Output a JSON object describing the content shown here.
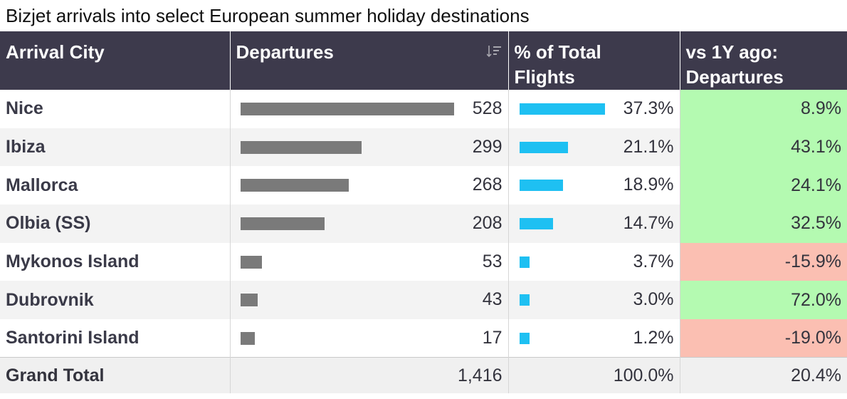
{
  "title": "Bizjet arrivals into select European summer holiday destinations",
  "headers": {
    "city": "Arrival City",
    "departures": "Departures",
    "pct_line1": "% of Total",
    "pct_line2": "Flights",
    "yoy_line1": "vs 1Y ago:",
    "yoy_line2": "Departures"
  },
  "colors": {
    "header_bg": "#3d3a4c",
    "departures_bar": "#7a7a7a",
    "pct_bar": "#1ec0f2",
    "positive_change": "#b4fab1",
    "negative_change": "#fbbfb2"
  },
  "chart_data": {
    "type": "table",
    "columns": [
      "Arrival City",
      "Departures",
      "% of Total Flights",
      "vs 1Y ago: Departures"
    ],
    "rows": [
      {
        "city": "Nice",
        "departures": 528,
        "departures_label": "528",
        "pct": 37.3,
        "pct_label": "37.3%",
        "yoy": 8.9,
        "yoy_label": "8.9%"
      },
      {
        "city": "Ibiza",
        "departures": 299,
        "departures_label": "299",
        "pct": 21.1,
        "pct_label": "21.1%",
        "yoy": 43.1,
        "yoy_label": "43.1%"
      },
      {
        "city": "Mallorca",
        "departures": 268,
        "departures_label": "268",
        "pct": 18.9,
        "pct_label": "18.9%",
        "yoy": 24.1,
        "yoy_label": "24.1%"
      },
      {
        "city": "Olbia (SS)",
        "departures": 208,
        "departures_label": "208",
        "pct": 14.7,
        "pct_label": "14.7%",
        "yoy": 32.5,
        "yoy_label": "32.5%"
      },
      {
        "city": "Mykonos Island",
        "departures": 53,
        "departures_label": "53",
        "pct": 3.7,
        "pct_label": "3.7%",
        "yoy": -15.9,
        "yoy_label": "-15.9%"
      },
      {
        "city": "Dubrovnik",
        "departures": 43,
        "departures_label": "43",
        "pct": 3.0,
        "pct_label": "3.0%",
        "yoy": 72.0,
        "yoy_label": "72.0%"
      },
      {
        "city": "Santorini Island",
        "departures": 17,
        "departures_label": "17",
        "pct": 1.2,
        "pct_label": "1.2%",
        "yoy": -19.0,
        "yoy_label": "-19.0%"
      }
    ],
    "total": {
      "label": "Grand Total",
      "departures_label": "1,416",
      "pct_label": "100.0%",
      "yoy_label": "20.4%"
    }
  }
}
